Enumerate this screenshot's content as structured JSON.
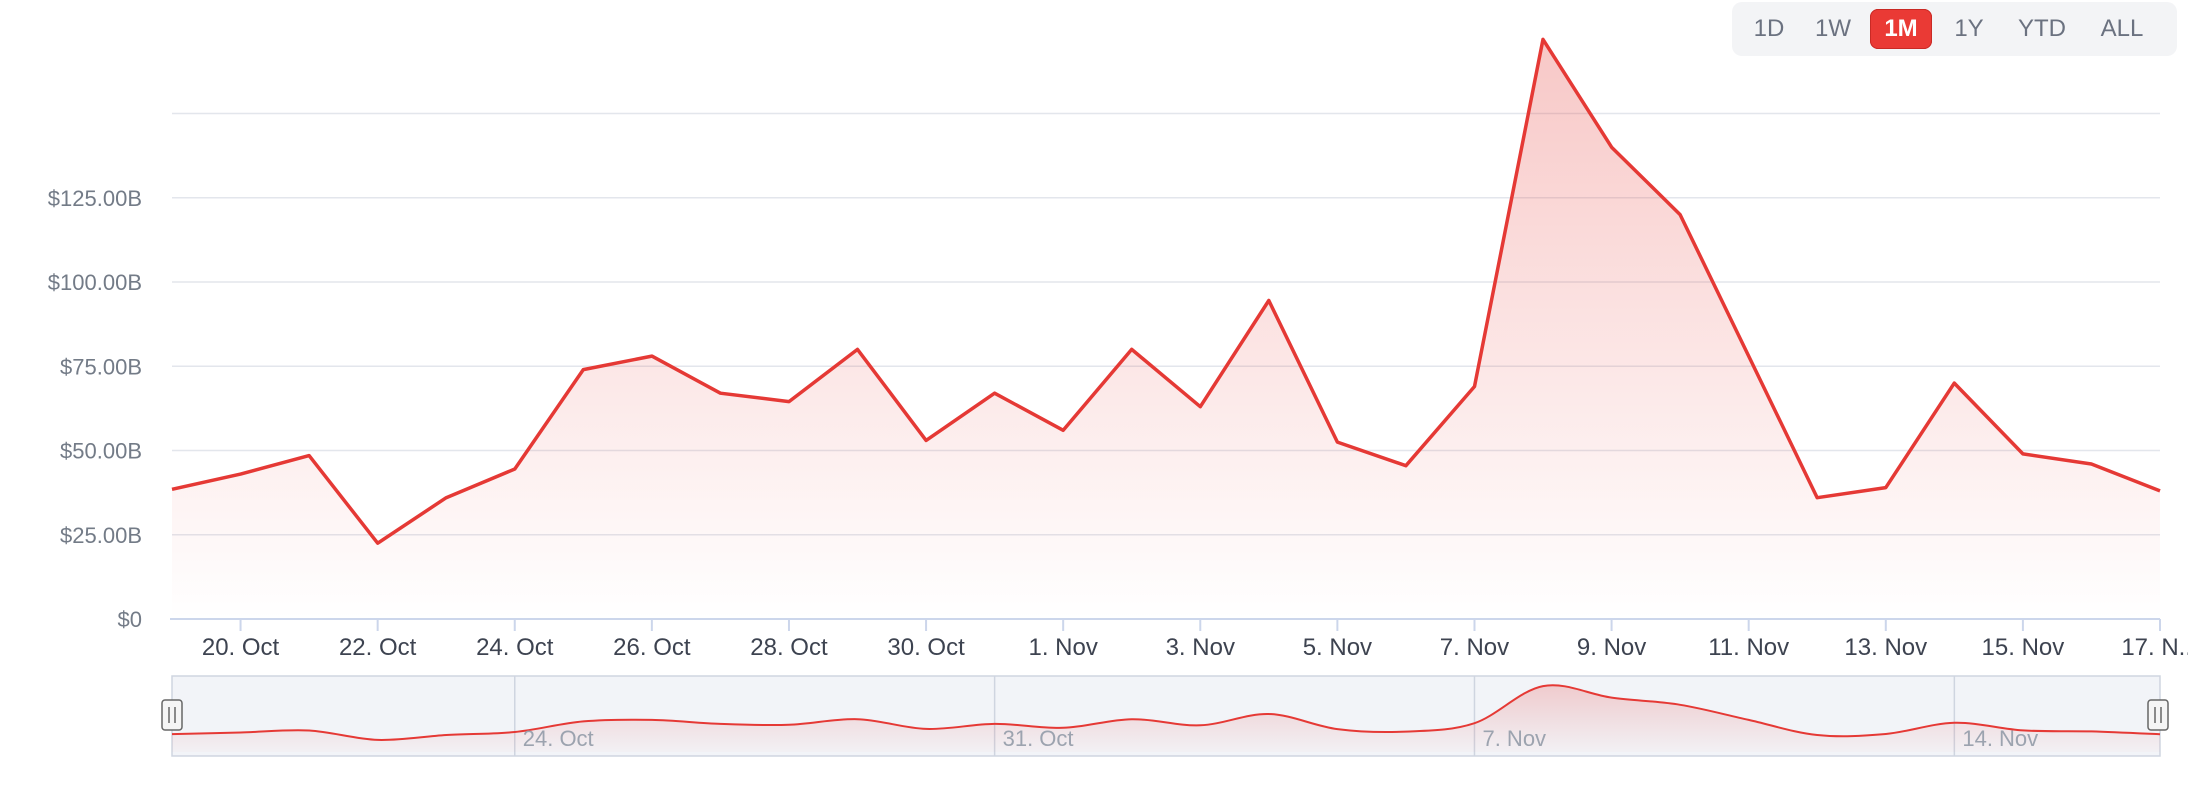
{
  "range_selector": {
    "buttons": [
      {
        "id": "1d",
        "label": "1D",
        "active": false
      },
      {
        "id": "1w",
        "label": "1W",
        "active": false
      },
      {
        "id": "1m",
        "label": "1M",
        "active": true
      },
      {
        "id": "1y",
        "label": "1Y",
        "active": false
      },
      {
        "id": "ytd",
        "label": "YTD",
        "active": false
      },
      {
        "id": "all",
        "label": "ALL",
        "active": false
      }
    ]
  },
  "chart_data": {
    "type": "area",
    "title": "",
    "xlabel": "",
    "ylabel": "",
    "ylim": [
      0,
      150
    ],
    "y_ticks": [
      0,
      25,
      50,
      75,
      100,
      125
    ],
    "y_tick_labels": [
      "$0",
      "$25.00B",
      "$50.00B",
      "$75.00B",
      "$100.00B",
      "$125.00B"
    ],
    "grid": true,
    "x_tick_labels": [
      "20. Oct",
      "22. Oct",
      "24. Oct",
      "26. Oct",
      "28. Oct",
      "30. Oct",
      "1. Nov",
      "3. Nov",
      "5. Nov",
      "7. Nov",
      "9. Nov",
      "11. Nov",
      "13. Nov",
      "15. Nov",
      "17. N..."
    ],
    "x": [
      "19. Oct",
      "20. Oct",
      "21. Oct",
      "22. Oct",
      "23. Oct",
      "24. Oct",
      "25. Oct",
      "26. Oct",
      "27. Oct",
      "28. Oct",
      "29. Oct",
      "30. Oct",
      "31. Oct",
      "1. Nov",
      "2. Nov",
      "3. Nov",
      "4. Nov",
      "5. Nov",
      "6. Nov",
      "7. Nov",
      "8. Nov",
      "9. Nov",
      "10. Nov",
      "11. Nov",
      "12. Nov",
      "13. Nov",
      "14. Nov",
      "15. Nov",
      "16. Nov",
      "17. Nov"
    ],
    "values": [
      38.5,
      43,
      48.5,
      22.5,
      36,
      44.5,
      74,
      78,
      67,
      64.5,
      80,
      53,
      67,
      56,
      80,
      63,
      94.5,
      52.5,
      45.5,
      69,
      172,
      140,
      120,
      78,
      36,
      39,
      70,
      49,
      46,
      38
    ],
    "line_color": "#e53935",
    "navigator_labels": [
      "24. Oct",
      "31. Oct",
      "7. Nov",
      "14. Nov"
    ]
  }
}
